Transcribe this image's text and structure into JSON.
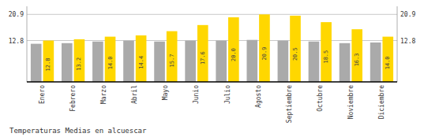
{
  "chart_data": {
    "type": "bar",
    "title": "Temperaturas Medias en alcuescar",
    "categories": [
      "Enero",
      "Febrero",
      "Marzo",
      "Abril",
      "Mayo",
      "Junio",
      "Julio",
      "Agosto",
      "Septiembre",
      "Octubre",
      "Noviembre",
      "Diciembre"
    ],
    "series": [
      {
        "color": "#AAAAAA",
        "values": [
          11.8,
          12.0,
          12.5,
          12.8,
          12.5,
          12.8,
          12.8,
          13.0,
          12.8,
          12.5,
          12.0,
          12.2
        ]
      },
      {
        "color": "#FFD700",
        "values": [
          12.8,
          13.2,
          14.0,
          14.4,
          15.7,
          17.6,
          20.0,
          20.9,
          20.5,
          18.5,
          16.3,
          14.0
        ],
        "data_labels": true,
        "value_labels": [
          "12.8",
          "13.2",
          "14.0",
          "14.4",
          "15.7",
          "17.6",
          "20.0",
          "20.9",
          "20.5",
          "18.5",
          "16.3",
          "14.0"
        ]
      }
    ],
    "ylim": [
      0,
      23.408
    ],
    "yticks": [
      12.8,
      20.9
    ],
    "y2lim": [
      0,
      23.408
    ],
    "y2ticks": [
      12.8,
      20.9
    ],
    "grid": true
  }
}
